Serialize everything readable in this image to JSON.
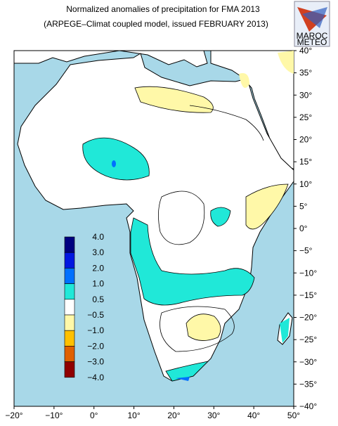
{
  "header": {
    "title": "Normalized anomalies of precipitation for FMA 2013",
    "subtitle": "(ARPEGE–Climat coupled model, issued FEBRUARY 2013)"
  },
  "logo": {
    "line1": "MAROC",
    "line2": "METEO"
  },
  "map": {
    "lon_ticks": [
      {
        "value": -20,
        "label": "−20°"
      },
      {
        "value": -10,
        "label": "−10°"
      },
      {
        "value": 0,
        "label": "0°"
      },
      {
        "value": 10,
        "label": "10°"
      },
      {
        "value": 20,
        "label": "20°"
      },
      {
        "value": 30,
        "label": "30°"
      },
      {
        "value": 40,
        "label": "40°"
      },
      {
        "value": 50,
        "label": "50°"
      }
    ],
    "lat_ticks": [
      {
        "value": 40,
        "label": "40°"
      },
      {
        "value": 35,
        "label": "35°"
      },
      {
        "value": 30,
        "label": "30°"
      },
      {
        "value": 25,
        "label": "25°"
      },
      {
        "value": 20,
        "label": "20°"
      },
      {
        "value": 15,
        "label": "15°"
      },
      {
        "value": 10,
        "label": "10°"
      },
      {
        "value": 5,
        "label": "5°"
      },
      {
        "value": 0,
        "label": "0°"
      },
      {
        "value": -5,
        "label": "−5°"
      },
      {
        "value": -10,
        "label": "−10°"
      },
      {
        "value": -15,
        "label": "−15°"
      },
      {
        "value": -20,
        "label": "−20°"
      },
      {
        "value": -25,
        "label": "−25°"
      },
      {
        "value": -30,
        "label": "−30°"
      },
      {
        "value": -35,
        "label": "−35°"
      },
      {
        "value": -40,
        "label": "−40°"
      }
    ]
  },
  "legend": {
    "levels": [
      {
        "value": 4,
        "label": "4.0"
      },
      {
        "value": 3,
        "label": "3.0"
      },
      {
        "value": 2,
        "label": "2.0"
      },
      {
        "value": 1,
        "label": "1.0"
      },
      {
        "value": 0.5,
        "label": "0.5"
      },
      {
        "value": -0.5,
        "label": "−0.5"
      },
      {
        "value": -1,
        "label": "−1.0"
      },
      {
        "value": -2,
        "label": "−2.0"
      },
      {
        "value": -3,
        "label": "−3.0"
      },
      {
        "value": -4,
        "label": "−4.0"
      }
    ],
    "colors": [
      "#000080",
      "#0018e0",
      "#0070ff",
      "#20e8d8",
      "#ffffff",
      "#fff8a8",
      "#ffc000",
      "#e06000",
      "#900000"
    ]
  }
}
